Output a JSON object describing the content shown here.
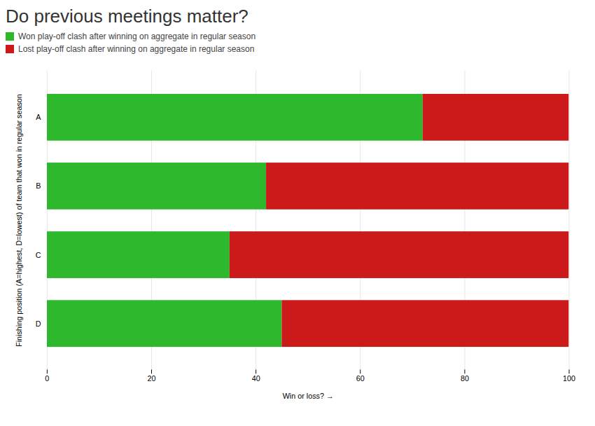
{
  "chart_data": {
    "type": "bar",
    "orientation": "horizontal",
    "stacked": true,
    "title": "Do previous meetings matter?",
    "categories": [
      "A",
      "B",
      "C",
      "D"
    ],
    "series": [
      {
        "name": "Won play-off clash after winning on aggregate in regular season",
        "color": "#2db82d",
        "values": [
          72,
          42,
          35,
          45
        ]
      },
      {
        "name": "Lost play-off clash after winning on aggregate in regular season",
        "color": "#cc1a1a",
        "values": [
          28,
          58,
          65,
          55
        ]
      }
    ],
    "xlabel": "Win or loss?",
    "ylabel": "Finishing position (A=highest, D=lowest) of team that won in regular season",
    "xlim": [
      0,
      100
    ],
    "xticks": [
      0,
      20,
      40,
      60,
      80,
      100
    ],
    "grid": true,
    "legend": "upper left"
  }
}
